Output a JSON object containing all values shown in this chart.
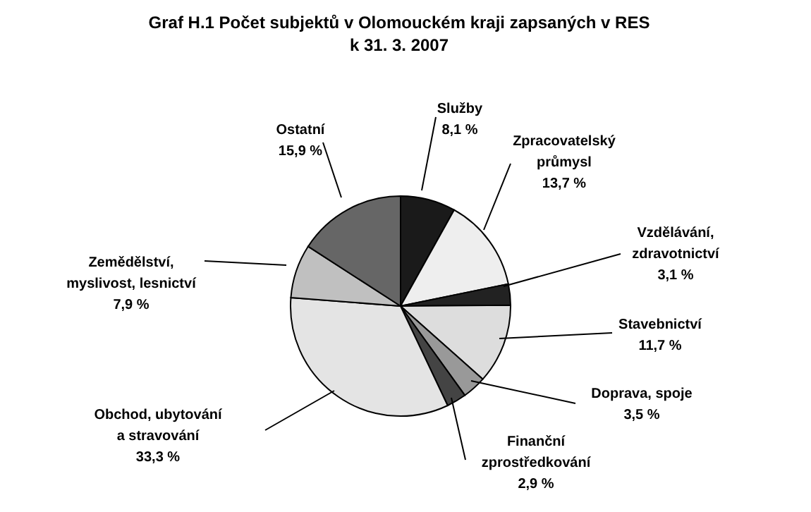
{
  "chart_data": {
    "type": "pie",
    "title": "Graf H.1  Počet subjektů v Olomouckém kraji zapsaných v RES",
    "subtitle": "k 31. 3. 2007",
    "categories": [
      "Služby",
      "Zpracovatelský\nprůmysl",
      "Vzdělávání,\nzdravotnictví",
      "Stavebnictví",
      "Doprava, spoje",
      "Finanční\nzprostředkování",
      "Obchod, ubytování\na stravování",
      "Zemědělství,\nmyslivost, lesnictví",
      "Ostatní"
    ],
    "values": [
      8.1,
      13.7,
      3.1,
      11.7,
      3.5,
      2.9,
      33.3,
      7.9,
      15.9
    ],
    "value_labels": [
      "8,1 %",
      "13,7 %",
      "3,1 %",
      "11,7 %",
      "3,5 %",
      "2,9 %",
      "33,3 %",
      "7,9 %",
      "15,9 %"
    ],
    "colors": [
      "#1a1a1a",
      "#eeeeee",
      "#222222",
      "#dddddd",
      "#999999",
      "#444444",
      "#e4e4e4",
      "#c0c0c0",
      "#666666"
    ]
  }
}
